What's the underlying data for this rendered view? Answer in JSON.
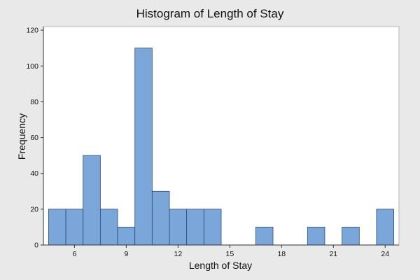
{
  "chart_data": {
    "type": "histogram",
    "title": "Histogram of Length of Stay",
    "xlabel": "Length of Stay",
    "ylabel": "Frequency",
    "bin_width": 1,
    "bins": [
      {
        "start": 4.5,
        "end": 5.5,
        "count": 20
      },
      {
        "start": 5.5,
        "end": 6.5,
        "count": 20
      },
      {
        "start": 6.5,
        "end": 7.5,
        "count": 50
      },
      {
        "start": 7.5,
        "end": 8.5,
        "count": 20
      },
      {
        "start": 8.5,
        "end": 9.5,
        "count": 10
      },
      {
        "start": 9.5,
        "end": 10.5,
        "count": 110
      },
      {
        "start": 10.5,
        "end": 11.5,
        "count": 30
      },
      {
        "start": 11.5,
        "end": 12.5,
        "count": 20
      },
      {
        "start": 12.5,
        "end": 13.5,
        "count": 20
      },
      {
        "start": 13.5,
        "end": 14.5,
        "count": 20
      },
      {
        "start": 14.5,
        "end": 15.5,
        "count": 0
      },
      {
        "start": 15.5,
        "end": 16.5,
        "count": 0
      },
      {
        "start": 16.5,
        "end": 17.5,
        "count": 10
      },
      {
        "start": 17.5,
        "end": 18.5,
        "count": 0
      },
      {
        "start": 18.5,
        "end": 19.5,
        "count": 0
      },
      {
        "start": 19.5,
        "end": 20.5,
        "count": 10
      },
      {
        "start": 20.5,
        "end": 21.5,
        "count": 0
      },
      {
        "start": 21.5,
        "end": 22.5,
        "count": 10
      },
      {
        "start": 22.5,
        "end": 23.5,
        "count": 0
      },
      {
        "start": 23.5,
        "end": 24.5,
        "count": 20
      }
    ],
    "xticks": [
      6,
      9,
      12,
      15,
      18,
      21,
      24
    ],
    "yticks": [
      0,
      20,
      40,
      60,
      80,
      100,
      120
    ],
    "xlim": [
      4.2,
      24.8
    ],
    "ylim": [
      0,
      122
    ],
    "grid": false,
    "colors": {
      "bar_fill": "#7aa6da",
      "bar_stroke": "#2a4a78",
      "plot_bg": "#ffffff",
      "frame_bg": "#e9e9e9"
    }
  }
}
